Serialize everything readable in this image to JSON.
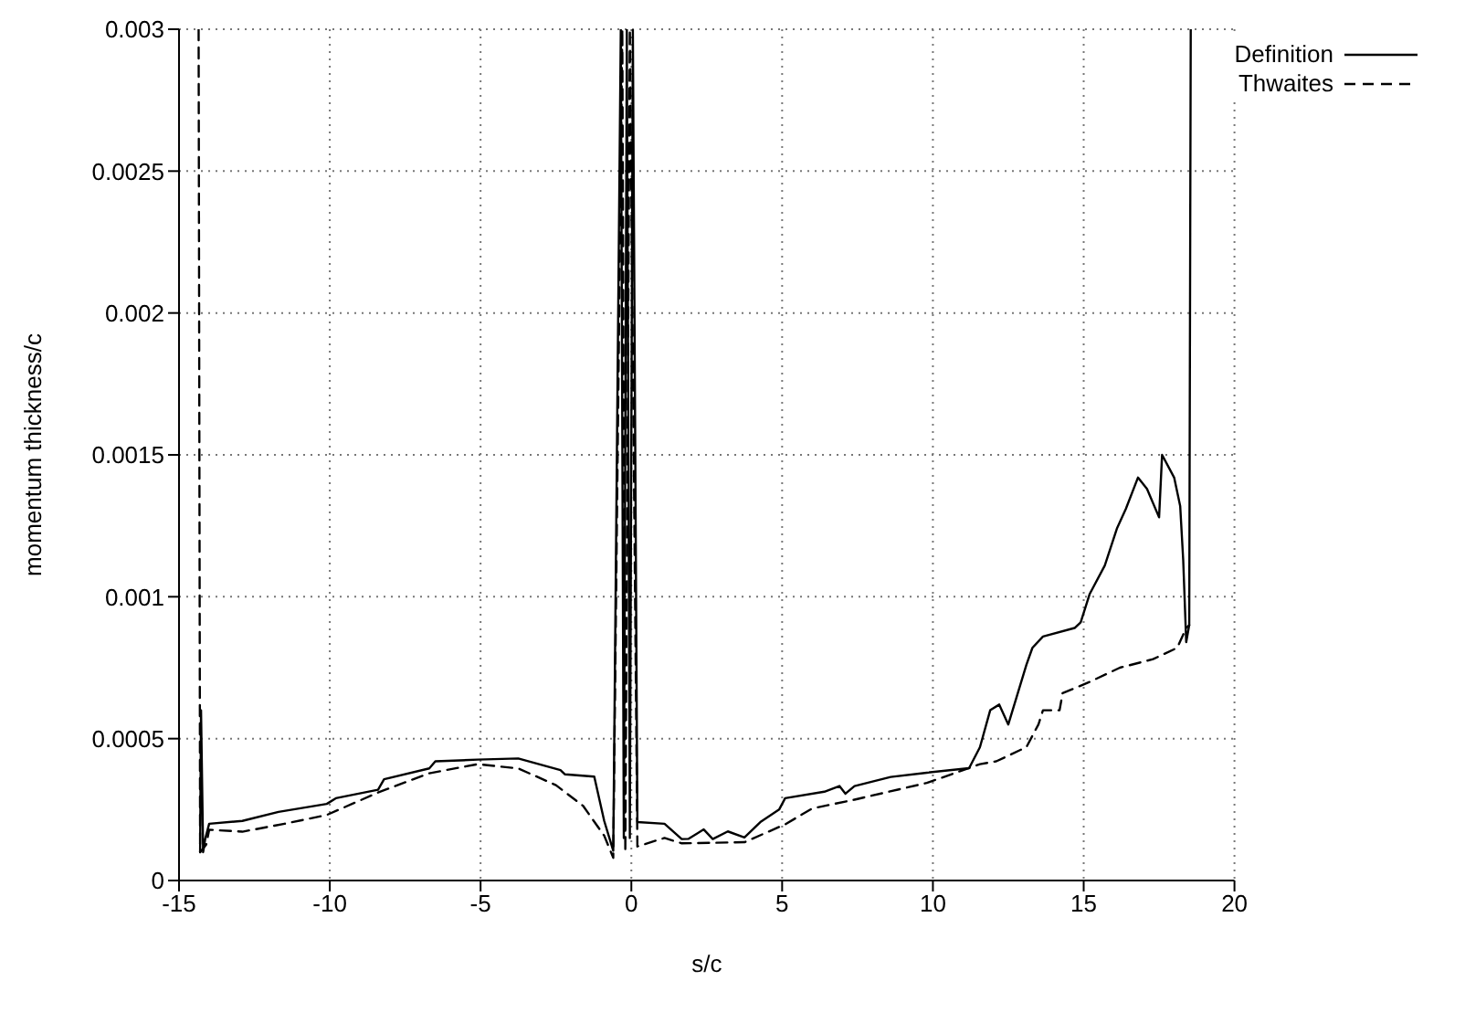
{
  "chart_data": {
    "type": "line",
    "xlabel": "s/c",
    "ylabel": "momentum thickness/c",
    "xlim": [
      -15,
      20
    ],
    "xticks": [
      -15,
      -10,
      -5,
      0,
      5,
      10,
      15,
      20
    ],
    "ylim": [
      0,
      0.003
    ],
    "yticks": [
      0,
      0.0005,
      0.001,
      0.0015,
      0.002,
      0.0025,
      0.003
    ],
    "grid": true,
    "legend": "top right",
    "marker": "none",
    "series": [
      {
        "name": "Definition",
        "color": "#000000",
        "line_style": "solid",
        "x": [
          -14.3,
          -14.27,
          -14.2,
          -14.13,
          -14.0,
          -12.9,
          -11.7,
          -10.1,
          -9.8,
          -8.4,
          -8.2,
          -6.7,
          -6.5,
          -5.1,
          -3.75,
          -2.35,
          -2.2,
          -1.23,
          -0.9,
          -0.6,
          -0.35,
          -0.25,
          -0.15,
          -0.05,
          0.05,
          0.2,
          1.1,
          1.67,
          1.9,
          2.4,
          2.7,
          3.2,
          3.75,
          4.3,
          4.9,
          5.1,
          6.4,
          6.9,
          7.1,
          7.4,
          8.6,
          9.8,
          11.2,
          11.56,
          11.9,
          12.2,
          12.5,
          13.1,
          13.3,
          13.65,
          14.7,
          14.9,
          15.2,
          15.7,
          16.1,
          16.4,
          16.8,
          17.1,
          17.5,
          17.6,
          18.0,
          18.2,
          18.3,
          18.4,
          18.5,
          18.55
        ],
        "values": [
          0.0001,
          0.0006,
          0.0001,
          0.000147,
          0.0002,
          0.00021,
          0.000242,
          0.00027,
          0.00029,
          0.00032,
          0.000357,
          0.000395,
          0.00042,
          0.000426,
          0.00043,
          0.000389,
          0.000374,
          0.000366,
          0.00021,
          0.000105,
          0.003,
          0.00015,
          0.003,
          0.00015,
          0.003,
          0.000206,
          0.0002,
          0.000146,
          0.000147,
          0.00018,
          0.000146,
          0.000173,
          0.000152,
          0.000208,
          0.00025,
          0.00029,
          0.000313,
          0.000333,
          0.000306,
          0.000333,
          0.000365,
          0.00038,
          0.000396,
          0.00047,
          0.0006,
          0.00062,
          0.00055,
          0.00076,
          0.00082,
          0.00086,
          0.00089,
          0.00091,
          0.00101,
          0.00111,
          0.00124,
          0.00131,
          0.00142,
          0.00138,
          0.00128,
          0.0015,
          0.00142,
          0.00132,
          0.00113,
          0.00084,
          0.0009,
          0.003
        ]
      },
      {
        "name": "Thwaites",
        "color": "#000000",
        "line_style": "dashed",
        "x": [
          -14.35,
          -14.3,
          -14.1,
          -14.0,
          -12.9,
          -11.5,
          -10.1,
          -8.4,
          -6.7,
          -5.1,
          -3.75,
          -2.5,
          -1.6,
          -0.9,
          -0.6,
          -0.3,
          -0.2,
          -0.05,
          0.2,
          1.1,
          1.67,
          3.75,
          5.1,
          6.0,
          7.4,
          9.8,
          11.56,
          12.1,
          13.1,
          13.5,
          13.65,
          14.2,
          14.3,
          15.2,
          16.2,
          17.3,
          18.1,
          18.4,
          18.5
        ],
        "values": [
          0.003,
          0.0001,
          0.000126,
          0.000179,
          0.000172,
          0.0002,
          0.000231,
          0.00031,
          0.000378,
          0.00041,
          0.000395,
          0.000336,
          0.000263,
          0.000158,
          8e-05,
          0.003,
          0.0001,
          0.003,
          0.00012,
          0.00015,
          0.000131,
          0.000135,
          0.000198,
          0.000254,
          0.000285,
          0.000344,
          0.00041,
          0.00042,
          0.00047,
          0.00055,
          0.0006,
          0.0006,
          0.00066,
          0.0007,
          0.00075,
          0.00078,
          0.00082,
          0.00089,
          0.0009
        ]
      }
    ]
  }
}
